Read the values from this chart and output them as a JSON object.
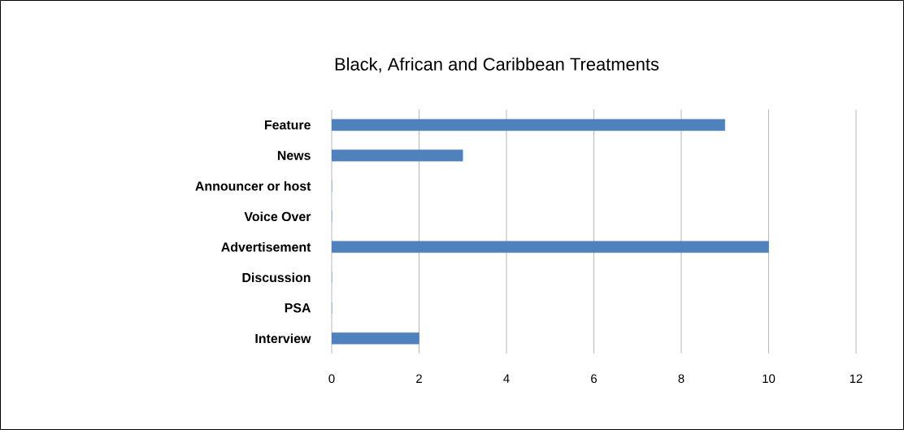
{
  "chart_data": {
    "type": "bar",
    "orientation": "horizontal",
    "title": "Black, African and Caribbean Treatments",
    "categories": [
      "Feature",
      "News",
      "Announcer or host",
      "Voice Over",
      "Advertisement",
      "Discussion",
      "PSA",
      "Interview"
    ],
    "values": [
      9,
      3,
      0,
      0,
      10,
      0,
      0,
      2
    ],
    "color": "#4f81bd",
    "xlim": [
      0,
      12
    ],
    "xticks": [
      0,
      2,
      4,
      6,
      8,
      10,
      12
    ],
    "grid": "x"
  }
}
